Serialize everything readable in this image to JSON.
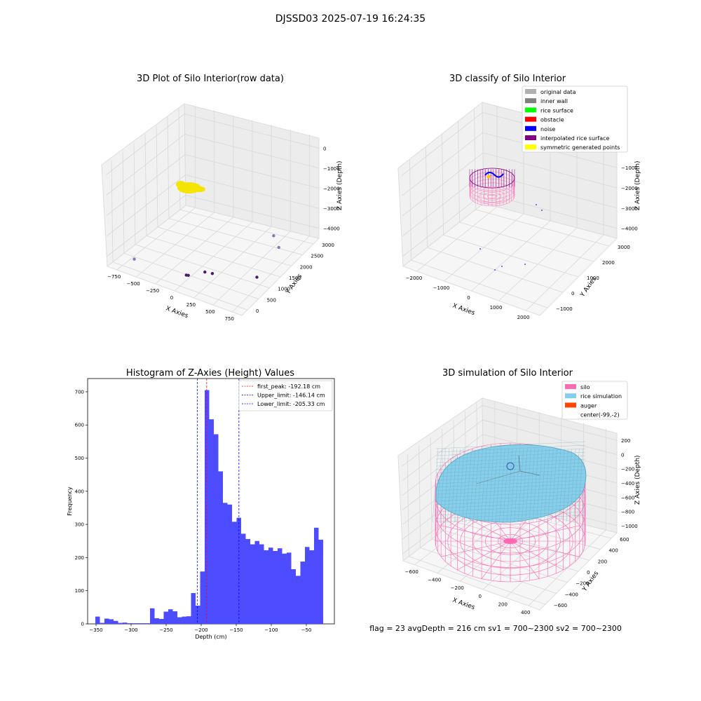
{
  "suptitle": "DJSSD03 2025-07-19 16:24:35",
  "status_line": "flag = 23  avgDepth = 216 cm  sv1 = 700~2300  sv2 = 700~2300",
  "chart_data": [
    {
      "type": "scatter",
      "projection": "3d",
      "title": "3D Plot of Silo Interior(row data)",
      "xlabel": "X Axies",
      "ylabel": "Y Axies",
      "zlabel": "Z Axies (Depth)",
      "xticks": [
        "−750",
        "−500",
        "−250",
        "0",
        "250",
        "500",
        "750"
      ],
      "yticks": [
        "0",
        "500",
        "1000",
        "1500",
        "2000",
        "2500",
        "3000"
      ],
      "zticks": [
        "0",
        "−1000",
        "−2000",
        "−3000",
        "−4000"
      ],
      "xlim": [
        -900,
        800
      ],
      "ylim": [
        -300,
        3200
      ],
      "zlim": [
        -4500,
        200
      ],
      "grid": true,
      "series": [
        {
          "color": "#f5e400",
          "points": [
            [
              -150,
              -10,
              -100
            ]
          ]
        },
        {
          "color": "#8a78b0",
          "points": [
            [
              -700,
              200,
              -4300
            ],
            [
              550,
              2000,
              -3000
            ],
            [
              700,
              1700,
              -3100
            ]
          ]
        },
        {
          "color": "#4a1a70",
          "points": [
            [
              -100,
              400,
              -4400
            ],
            [
              -80,
              420,
              -4400
            ],
            [
              50,
              700,
              -4300
            ],
            [
              130,
              750,
              -4300
            ],
            [
              650,
              900,
              -3900
            ]
          ]
        }
      ]
    },
    {
      "type": "scatter",
      "projection": "3d",
      "title": "3D classify of Silo Interior",
      "xlabel": "X Axies",
      "ylabel": "Y Axies",
      "zlabel": "Z Axies (Depth)",
      "xticks": [
        "−2000",
        "−1000",
        "0",
        "1000",
        "2000"
      ],
      "yticks": [
        "−1000",
        "0",
        "1000",
        "2000",
        "3000"
      ],
      "zticks": [
        "0",
        "−1000",
        "−2000",
        "−3000",
        "−4000"
      ],
      "xlim": [
        -2300,
        2300
      ],
      "ylim": [
        -1200,
        3300
      ],
      "zlim": [
        -4500,
        200
      ],
      "grid": true,
      "legend": {
        "location": "top-right",
        "entries": [
          {
            "label": "original data",
            "color": "#b0b0b0"
          },
          {
            "label": "inner wall",
            "color": "#808080"
          },
          {
            "label": "rice surface",
            "color": "#00ff00"
          },
          {
            "label": "obstacle",
            "color": "#ff0000"
          },
          {
            "label": "noise",
            "color": "#0000ff"
          },
          {
            "label": "interpolated rice surface",
            "color": "#800080"
          },
          {
            "label": "symmetric generated points",
            "color": "#ffff00"
          }
        ]
      }
    },
    {
      "type": "bar",
      "title": "Histogram of Z-Axies (Height) Values",
      "xlabel": "Depth (cm)",
      "ylabel": "Frequency",
      "xlim": [
        -362,
        -10
      ],
      "ylim": [
        0,
        740
      ],
      "xticks": [
        -350,
        -300,
        -250,
        -200,
        -150,
        -100,
        -50
      ],
      "yticks": [
        0,
        100,
        200,
        300,
        400,
        500,
        600,
        700
      ],
      "bin_width": 6.5,
      "bin_start": -351,
      "values": [
        22,
        3,
        16,
        14,
        9,
        3,
        4,
        2,
        2,
        2,
        2,
        2,
        47,
        17,
        15,
        37,
        44,
        38,
        20,
        22,
        23,
        93,
        55,
        158,
        705,
        617,
        572,
        460,
        365,
        360,
        308,
        320,
        272,
        256,
        240,
        250,
        240,
        222,
        230,
        220,
        228,
        212,
        215,
        165,
        145,
        188,
        232,
        222,
        290,
        254
      ],
      "bar_color": "#4d4dff",
      "legend": {
        "location": "top-right",
        "entries": [
          {
            "label": "first_peak: -192.18 cm",
            "color": "#ff0000",
            "value": -192.18
          },
          {
            "label": "Upper_limit: -146.14 cm",
            "color": "#0000ff",
            "value": -146.14
          },
          {
            "label": "Lower_limit: -205.33 cm",
            "color": "#0000ff",
            "value": -205.33
          }
        ]
      }
    },
    {
      "type": "surface",
      "projection": "3d",
      "title": "3D simulation of Silo Interior",
      "xlabel": "X Axies",
      "ylabel": "Y Axies",
      "zlabel": "Z Axies (Depth)",
      "xticks": [
        "−600",
        "−400",
        "−200",
        "0",
        "200",
        "400"
      ],
      "yticks": [
        "−600",
        "−400",
        "−200",
        "0",
        "200",
        "400",
        "600"
      ],
      "zticks": [
        "200",
        "0",
        "−200",
        "−400",
        "−600",
        "−800",
        "−1000"
      ],
      "xlim": [
        -700,
        500
      ],
      "ylim": [
        -700,
        700
      ],
      "zlim": [
        -1100,
        300
      ],
      "grid": true,
      "legend": {
        "location": "top-right",
        "entries": [
          {
            "label": "silo",
            "color": "#ff69b4"
          },
          {
            "label": "rice simulation",
            "color": "#87ceeb"
          },
          {
            "label": "auger",
            "color": "#ff4500"
          },
          {
            "label": "center(-99,-2)",
            "color": "#ffffff"
          }
        ]
      }
    }
  ]
}
